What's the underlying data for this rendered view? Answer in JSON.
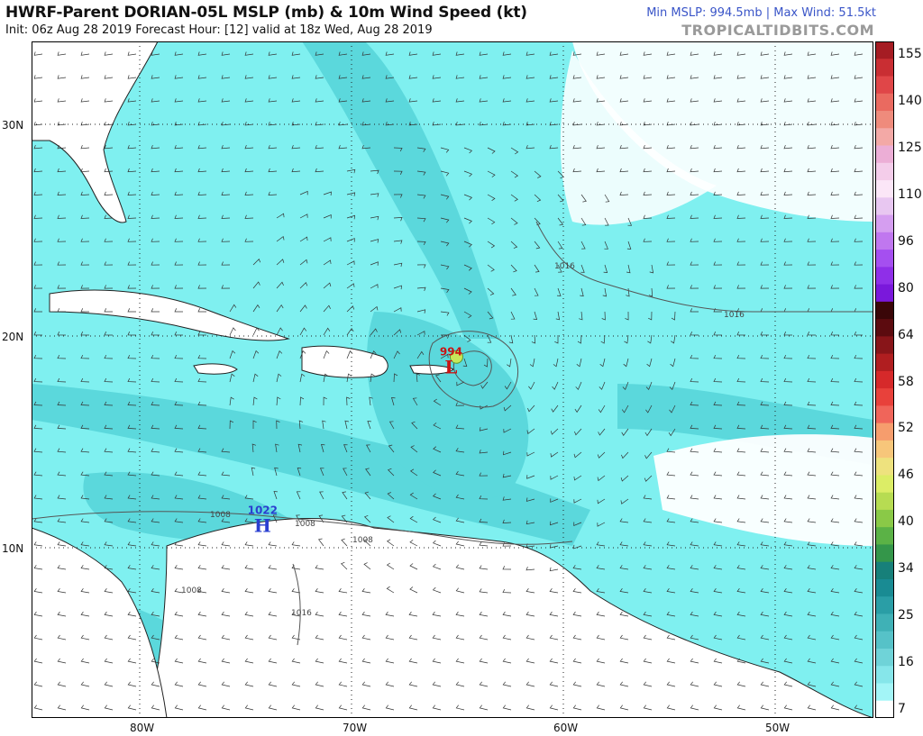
{
  "header": {
    "title": "HWRF-Parent DORIAN-05L MSLP (mb) & 10m Wind Speed (kt)",
    "subtitle": "Init: 06z Aug 28 2019   Forecast Hour: [12]   valid at 18z Wed, Aug 28 2019",
    "stats": "Min MSLP: 994.5mb | Max Wind: 51.5kt",
    "brand": "TROPICALTIDBITS.COM"
  },
  "map": {
    "lat_labels": [
      "30N",
      "20N",
      "10N"
    ],
    "lon_labels": [
      "80W",
      "70W",
      "60W",
      "50W"
    ],
    "low": {
      "value": "994",
      "letter": "L",
      "lon": -65.3,
      "lat": 18.5
    },
    "high": {
      "value": "1022",
      "letter": "H",
      "lon": -74.2,
      "lat": 11.0
    },
    "isobar_labels": [
      "1016",
      "1016",
      "1008",
      "1008",
      "1008",
      "1008",
      "1016"
    ]
  },
  "colorbar": {
    "labels": [
      "155",
      "140",
      "125",
      "110",
      "96",
      "80",
      "64",
      "58",
      "52",
      "46",
      "40",
      "34",
      "25",
      "16",
      "7"
    ],
    "colors": [
      "#a51c23",
      "#c92e33",
      "#e04648",
      "#ea6a60",
      "#ef8b7c",
      "#f3a9a6",
      "#ecaed6",
      "#f4cdea",
      "#fbe6f7",
      "#e8c7f1",
      "#d59ef0",
      "#c077ef",
      "#a54ff0",
      "#8f2fe8",
      "#7a18db",
      "#3a0608",
      "#5c0b0f",
      "#881519",
      "#b01e20",
      "#d6292a",
      "#e8413b",
      "#f0655a",
      "#f69d6d",
      "#f7c67a",
      "#eee27e",
      "#dced66",
      "#b7dc52",
      "#8ac947",
      "#5bb246",
      "#34964a",
      "#17807a",
      "#198b93",
      "#2a9ea6",
      "#3fb1b6",
      "#56c2c8",
      "#6fd3d8",
      "#86e6ea",
      "#a3f5f7",
      "#ffffff"
    ],
    "ocean_color": "#7ff0f0",
    "shade_color": "#4fd0d6",
    "land_color": "#ffffff"
  }
}
